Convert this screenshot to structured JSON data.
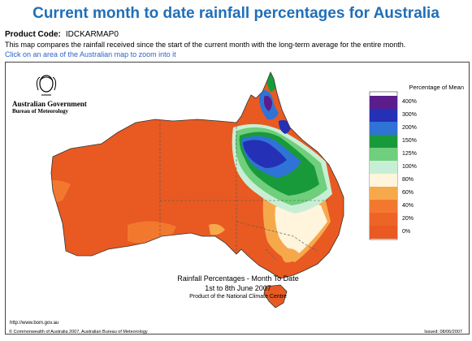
{
  "header": {
    "title": "Current month to date rainfall percentages for Australia",
    "product_code_label": "Product Code:",
    "product_code": "IDCKARMAP0",
    "description": "This map compares the rainfall received since the start of the current month with the long-term average for the entire month.",
    "zoom_link": "Click on an area of the Australian map to zoom into it"
  },
  "map": {
    "government": "Australian Government",
    "bureau": "Bureau of Meteorology",
    "legend": {
      "title": "Percentage of Mean",
      "items": [
        {
          "label": "400%",
          "color": "#5b1d8c"
        },
        {
          "label": "300%",
          "color": "#2430b6"
        },
        {
          "label": "200%",
          "color": "#2f73d6"
        },
        {
          "label": "150%",
          "color": "#199a3a"
        },
        {
          "label": "125%",
          "color": "#6fcf7c"
        },
        {
          "label": "100%",
          "color": "#c8efd5"
        },
        {
          "label": "80%",
          "color": "#fff4dc"
        },
        {
          "label": "60%",
          "color": "#f6a94b"
        },
        {
          "label": "40%",
          "color": "#f2782e"
        },
        {
          "label": "20%",
          "color": "#ee6427"
        },
        {
          "label": "0%",
          "color": "#e85a22"
        }
      ]
    },
    "caption": {
      "line1": "Rainfall Percentages - Month To Date",
      "line2": "1st to 8th June 2007",
      "line3": "Product of the National Climate Centre"
    },
    "footer": {
      "url": "http://www.bom.gov.au",
      "copyright": "© Commonwealth of Australia 2007, Australian Bureau of Meteorology",
      "issued": "Issued: 08/06/2007"
    }
  }
}
